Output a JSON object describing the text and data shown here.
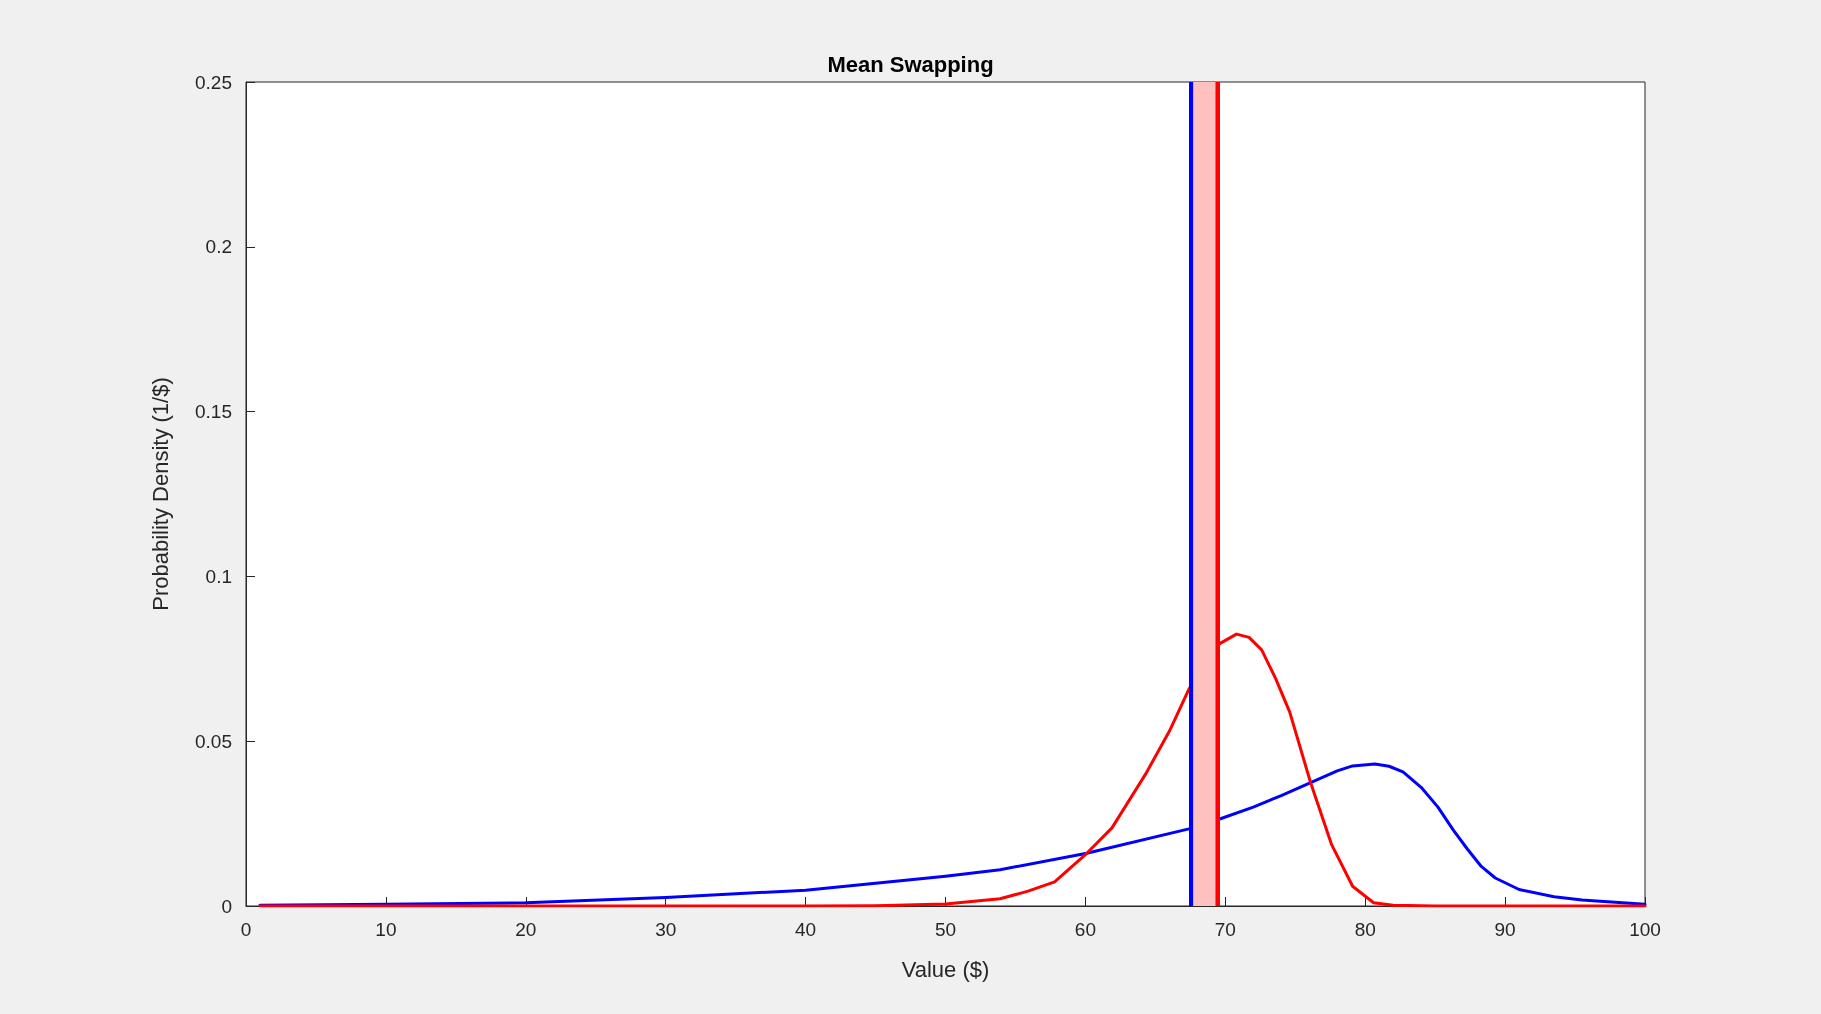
{
  "chart_data": {
    "type": "line",
    "title": "Mean Swapping",
    "xlabel": "Value ($)",
    "ylabel": "Probability Density (1/$)",
    "series": [
      {
        "color": "#0000ff",
        "x": [
          1,
          10,
          20,
          30,
          40,
          50,
          53.9,
          60.1,
          67.4,
          69.6,
          72,
          74,
          76.1,
          78,
          79.1,
          80.7,
          81.7,
          82.7,
          84,
          85.2,
          86.3,
          87.3,
          88.3,
          89.3,
          91,
          93.5,
          95.5,
          97.6,
          100
        ],
        "values": [
          0.0002,
          0.0005,
          0.001,
          0.0026,
          0.0048,
          0.009,
          0.011,
          0.016,
          0.0234,
          0.0264,
          0.03,
          0.0335,
          0.0374,
          0.041,
          0.0425,
          0.0431,
          0.0424,
          0.0407,
          0.036,
          0.03,
          0.023,
          0.0173,
          0.012,
          0.0085,
          0.005,
          0.0028,
          0.0018,
          0.0012,
          0.0005
        ]
      },
      {
        "color": "#ff0000",
        "x": [
          1,
          10,
          20,
          30,
          40,
          45,
          50,
          53.9,
          55.9,
          57.8,
          60.1,
          61.9,
          64.3,
          66,
          67.4,
          69.6,
          70.8,
          71.7,
          72.6,
          73.6,
          74.6,
          76.1,
          77.6,
          79.1,
          80.6,
          82,
          85,
          90,
          100
        ],
        "values": [
          0,
          0,
          0,
          0,
          0,
          0.0001,
          0.0006,
          0.0022,
          0.0045,
          0.0073,
          0.016,
          0.0237,
          0.04,
          0.053,
          0.0658,
          0.0796,
          0.0825,
          0.0815,
          0.0777,
          0.069,
          0.0589,
          0.0374,
          0.0186,
          0.006,
          0.001,
          0.0002,
          0,
          0,
          0
        ]
      }
    ],
    "xlim": [
      0,
      100
    ],
    "xticks": [
      0,
      10,
      20,
      30,
      40,
      50,
      60,
      70,
      80,
      90,
      100
    ],
    "ylim": [
      0,
      0.25
    ],
    "yticks": [
      0,
      0.05,
      0.1,
      0.15,
      0.2,
      0.25
    ],
    "ref_lines": [
      {
        "axis": "x",
        "value": 67.7,
        "color": "#0000ff"
      },
      {
        "axis": "x",
        "value": 69.3,
        "color": "#ff0000"
      }
    ],
    "bands": [
      {
        "axis": "x",
        "from": 67.7,
        "to": 69.3,
        "color": "#ffc0c0"
      }
    ],
    "marker": "none",
    "line_style": "solid"
  }
}
